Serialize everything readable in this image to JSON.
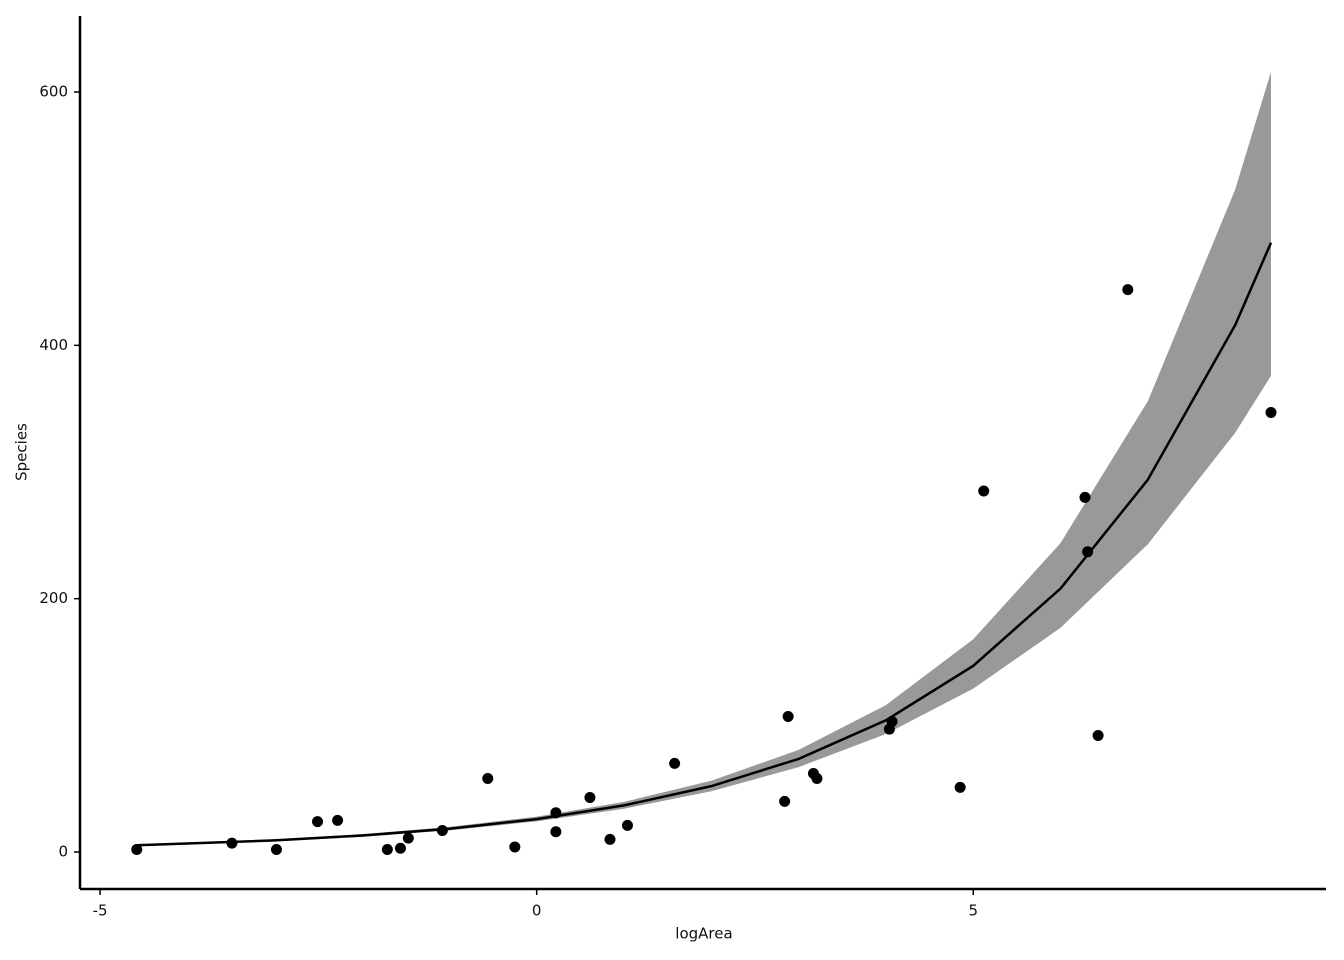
{
  "chart_data": {
    "type": "scatter",
    "x_label": "logArea",
    "y_label": "Species",
    "xlim": [
      -5.23,
      9.04
    ],
    "ylim": [
      -29.2,
      660
    ],
    "xticks": [
      -5,
      0,
      5
    ],
    "yticks": [
      0,
      200,
      400,
      600
    ],
    "grid": false,
    "point_color": "#000000",
    "x": [
      -4.58,
      -3.49,
      -2.98,
      -2.51,
      -2.28,
      -1.71,
      -1.56,
      -1.47,
      -1.08,
      -0.56,
      -0.25,
      0.22,
      0.22,
      0.61,
      0.84,
      1.04,
      1.58,
      2.84,
      2.88,
      3.17,
      3.21,
      4.04,
      4.07,
      4.85,
      5.12,
      6.28,
      6.31,
      6.43,
      6.77,
      8.41
    ],
    "values": [
      2,
      7,
      2,
      24,
      25,
      2,
      3,
      11,
      17,
      58,
      4,
      31,
      16,
      43,
      10,
      21,
      70,
      40,
      107,
      62,
      58,
      97,
      103,
      51,
      285,
      280,
      237,
      92,
      444,
      347
    ],
    "fit": {
      "line_color": "#000000",
      "band_color": "#999999",
      "x": [
        -4.58,
        -3,
        -2,
        -1,
        0,
        1,
        2,
        3,
        4,
        5,
        6,
        7,
        8,
        8.41
      ],
      "values": [
        5.3,
        9.2,
        13.0,
        18.4,
        26,
        36.8,
        52.0,
        73.5,
        104,
        147,
        208,
        294,
        416,
        481
      ],
      "lower": [
        4.7,
        8.4,
        12.0,
        17.1,
        24.2,
        34.2,
        48.0,
        67.0,
        93.2,
        129,
        177,
        243,
        331,
        376
      ],
      "upper": [
        6.0,
        10.1,
        14.1,
        19.8,
        27.9,
        39.6,
        56.3,
        80.6,
        116,
        168,
        244,
        356,
        523,
        616
      ]
    }
  }
}
